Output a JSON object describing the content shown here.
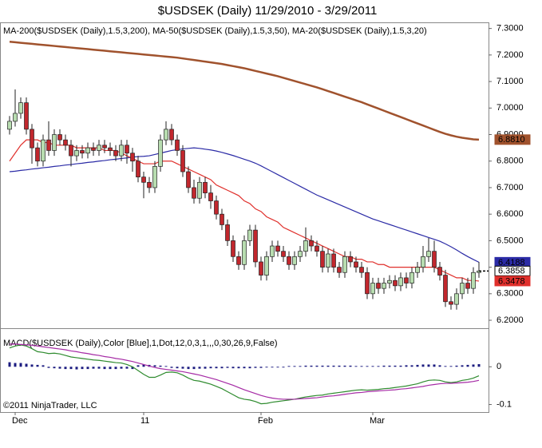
{
  "chart_data": [
    {
      "type": "candlestick",
      "title": "$USDSEK (Daily)  11/29/2010 - 3/29/2011",
      "legend": "MA-200($USDSEK (Daily),1.5,3,200), MA-50($USDSEK (Daily),1.5,3,50), MA-20($USDSEK (Daily),1.5,3,20)",
      "categories": [
        null,
        "Dec",
        null,
        null,
        null,
        null,
        null,
        null,
        null,
        null,
        null,
        null,
        null,
        null,
        null,
        null,
        null,
        null,
        null,
        null,
        null,
        null,
        null,
        null,
        "11",
        null,
        null,
        null,
        null,
        null,
        null,
        null,
        null,
        null,
        null,
        null,
        null,
        null,
        null,
        null,
        null,
        null,
        null,
        null,
        null,
        "Feb",
        null,
        null,
        null,
        null,
        null,
        null,
        null,
        null,
        null,
        null,
        null,
        null,
        null,
        null,
        null,
        null,
        null,
        null,
        null,
        "Mar",
        null,
        null,
        null,
        null,
        null,
        null,
        null,
        null,
        null,
        null,
        null,
        null,
        null,
        null,
        null,
        null,
        null,
        null,
        null
      ],
      "open": [
        6.92,
        6.95,
        6.98,
        7.02,
        6.92,
        6.85,
        6.8,
        6.88,
        6.84,
        6.9,
        6.88,
        6.86,
        6.82,
        6.84,
        6.83,
        6.85,
        6.84,
        6.86,
        6.85,
        6.84,
        6.82,
        6.86,
        6.83,
        6.8,
        6.74,
        6.72,
        6.7,
        6.78,
        6.88,
        6.92,
        6.88,
        6.84,
        6.76,
        6.7,
        6.66,
        6.72,
        6.68,
        6.65,
        6.6,
        6.56,
        6.5,
        6.44,
        6.41,
        6.5,
        6.54,
        6.42,
        6.37,
        6.44,
        6.48,
        6.46,
        6.44,
        6.41,
        6.44,
        6.46,
        6.5,
        6.48,
        6.46,
        6.4,
        6.45,
        6.4,
        6.38,
        6.44,
        6.42,
        6.4,
        6.38,
        6.3,
        6.34,
        6.32,
        6.34,
        6.35,
        6.33,
        6.36,
        6.34,
        6.38,
        6.4,
        6.44,
        6.46,
        6.4,
        6.37,
        6.27,
        6.26,
        6.3,
        6.34,
        6.32,
        6.38
      ],
      "high": [
        6.97,
        7.07,
        7.04,
        7.04,
        6.94,
        6.87,
        6.9,
        6.95,
        6.92,
        6.92,
        6.9,
        6.88,
        6.86,
        6.86,
        6.87,
        6.87,
        6.88,
        6.88,
        6.87,
        6.86,
        6.88,
        6.88,
        6.85,
        6.82,
        6.76,
        6.74,
        6.8,
        6.9,
        6.95,
        6.94,
        6.9,
        6.86,
        6.78,
        6.73,
        6.74,
        6.74,
        6.71,
        6.67,
        6.62,
        6.58,
        6.52,
        6.46,
        6.52,
        6.56,
        6.56,
        6.44,
        6.46,
        6.5,
        6.5,
        6.48,
        6.46,
        6.46,
        6.48,
        6.55,
        6.52,
        6.5,
        6.48,
        6.47,
        6.47,
        6.42,
        6.46,
        6.46,
        6.44,
        6.42,
        6.4,
        6.36,
        6.36,
        6.36,
        6.37,
        6.37,
        6.38,
        6.38,
        6.4,
        6.42,
        6.48,
        6.51,
        6.5,
        6.42,
        6.39,
        6.29,
        6.32,
        6.36,
        6.36,
        6.4,
        6.42
      ],
      "low": [
        6.9,
        6.93,
        6.96,
        6.9,
        6.79,
        6.78,
        6.78,
        6.82,
        6.82,
        6.86,
        6.84,
        6.78,
        6.8,
        6.81,
        6.81,
        6.82,
        6.82,
        6.83,
        6.82,
        6.8,
        6.8,
        6.79,
        6.76,
        6.72,
        6.66,
        6.68,
        6.68,
        6.76,
        6.86,
        6.86,
        6.82,
        6.74,
        6.68,
        6.64,
        6.64,
        6.66,
        6.62,
        6.58,
        6.54,
        6.48,
        6.42,
        6.39,
        6.39,
        6.48,
        6.4,
        6.35,
        6.35,
        6.42,
        6.44,
        6.42,
        6.39,
        6.39,
        6.42,
        6.44,
        6.46,
        6.44,
        6.38,
        6.38,
        6.38,
        6.36,
        6.36,
        6.4,
        6.38,
        6.36,
        6.28,
        6.28,
        6.3,
        6.3,
        6.32,
        6.31,
        6.31,
        6.32,
        6.32,
        6.36,
        6.38,
        6.42,
        6.38,
        6.35,
        6.25,
        6.24,
        6.24,
        6.28,
        6.3,
        6.3,
        6.36
      ],
      "close": [
        6.95,
        6.98,
        7.02,
        6.92,
        6.85,
        6.8,
        6.88,
        6.84,
        6.9,
        6.88,
        6.86,
        6.82,
        6.84,
        6.83,
        6.85,
        6.84,
        6.86,
        6.85,
        6.84,
        6.82,
        6.86,
        6.83,
        6.8,
        6.74,
        6.72,
        6.7,
        6.78,
        6.88,
        6.92,
        6.88,
        6.84,
        6.76,
        6.7,
        6.66,
        6.72,
        6.68,
        6.65,
        6.6,
        6.56,
        6.5,
        6.44,
        6.41,
        6.5,
        6.54,
        6.42,
        6.37,
        6.44,
        6.48,
        6.46,
        6.44,
        6.41,
        6.44,
        6.46,
        6.5,
        6.48,
        6.46,
        6.4,
        6.45,
        6.4,
        6.38,
        6.44,
        6.42,
        6.4,
        6.38,
        6.3,
        6.34,
        6.32,
        6.34,
        6.35,
        6.33,
        6.36,
        6.34,
        6.38,
        6.4,
        6.44,
        6.46,
        6.4,
        6.37,
        6.27,
        6.26,
        6.3,
        6.34,
        6.32,
        6.38,
        6.3858
      ],
      "up_color": "#b8ddb0",
      "down_color": "#c1272d",
      "series": [
        {
          "color": "#a0522d",
          "last_label": "6.8810",
          "values": [
            7.25,
            7.248,
            7.246,
            7.244,
            7.242,
            7.24,
            7.238,
            7.236,
            7.234,
            7.232,
            7.23,
            7.228,
            7.226,
            7.224,
            7.222,
            7.22,
            7.218,
            7.216,
            7.214,
            7.212,
            7.21,
            7.208,
            7.206,
            7.204,
            7.202,
            7.2,
            7.198,
            7.196,
            7.194,
            7.192,
            7.19,
            7.187,
            7.184,
            7.181,
            7.178,
            7.175,
            7.172,
            7.169,
            7.166,
            7.162,
            7.158,
            7.154,
            7.15,
            7.145,
            7.14,
            7.135,
            7.13,
            7.125,
            7.12,
            7.114,
            7.108,
            7.102,
            7.096,
            7.09,
            7.084,
            7.078,
            7.071,
            7.064,
            7.057,
            7.05,
            7.043,
            7.036,
            7.029,
            7.022,
            7.014,
            7.006,
            6.998,
            6.99,
            6.982,
            6.974,
            6.966,
            6.958,
            6.95,
            6.942,
            6.934,
            6.926,
            6.918,
            6.91,
            6.903,
            6.897,
            6.892,
            6.888,
            6.885,
            6.882,
            6.881
          ]
        },
        {
          "color": "#2b2ba6",
          "values": [
            6.76,
            6.762,
            6.765,
            6.767,
            6.77,
            6.772,
            6.775,
            6.777,
            6.78,
            6.782,
            6.785,
            6.787,
            6.79,
            6.792,
            6.795,
            6.797,
            6.8,
            6.802,
            6.805,
            6.807,
            6.81,
            6.812,
            6.815,
            6.817,
            6.818,
            6.82,
            6.825,
            6.83,
            6.835,
            6.84,
            6.843,
            6.846,
            6.848,
            6.85,
            6.848,
            6.845,
            6.842,
            6.838,
            6.833,
            6.827,
            6.821,
            6.814,
            6.807,
            6.8,
            6.792,
            6.782,
            6.771,
            6.76,
            6.749,
            6.738,
            6.727,
            6.716,
            6.705,
            6.694,
            6.683,
            6.672,
            6.663,
            6.654,
            6.645,
            6.636,
            6.627,
            6.618,
            6.609,
            6.6,
            6.591,
            6.582,
            6.575,
            6.568,
            6.561,
            6.554,
            6.547,
            6.54,
            6.533,
            6.526,
            6.519,
            6.512,
            6.505,
            6.498,
            6.488,
            6.477,
            6.465,
            6.452,
            6.44,
            6.429,
            6.4188
          ]
        },
        {
          "color": "#e0302c",
          "values": [
            6.8,
            6.83,
            6.86,
            6.88,
            6.88,
            6.88,
            6.87,
            6.87,
            6.86,
            6.86,
            6.86,
            6.86,
            6.85,
            6.85,
            6.85,
            6.85,
            6.85,
            6.84,
            6.84,
            6.84,
            6.83,
            6.82,
            6.81,
            6.8,
            6.79,
            6.79,
            6.79,
            6.8,
            6.8,
            6.8,
            6.79,
            6.78,
            6.77,
            6.76,
            6.75,
            6.74,
            6.73,
            6.71,
            6.7,
            6.69,
            6.68,
            6.67,
            6.65,
            6.64,
            6.62,
            6.61,
            6.59,
            6.58,
            6.57,
            6.55,
            6.54,
            6.53,
            6.52,
            6.51,
            6.5,
            6.49,
            6.48,
            6.47,
            6.46,
            6.45,
            6.44,
            6.44,
            6.43,
            6.43,
            6.42,
            6.42,
            6.41,
            6.41,
            6.4,
            6.4,
            6.4,
            6.4,
            6.4,
            6.4,
            6.4,
            6.4,
            6.4,
            6.39,
            6.38,
            6.37,
            6.36,
            6.36,
            6.35,
            6.35,
            6.3478
          ]
        }
      ],
      "ylim": [
        6.17,
        7.32
      ],
      "yticks": [
        {
          "value": 6.2,
          "label": "6.2000"
        },
        {
          "value": 6.3,
          "label": "6.3000"
        },
        {
          "value": 6.4,
          "label": "6.4000"
        },
        {
          "value": 6.5,
          "label": "6.5000"
        },
        {
          "value": 6.6,
          "label": "6.6000"
        },
        {
          "value": 6.7,
          "label": "6.7000"
        },
        {
          "value": 6.8,
          "label": "6.8000"
        },
        {
          "value": 6.9,
          "label": "6.9000"
        },
        {
          "value": 7.0,
          "label": "7.0000"
        },
        {
          "value": 7.1,
          "label": "7.1000"
        },
        {
          "value": 7.2,
          "label": "7.2000"
        },
        {
          "value": 7.3,
          "label": "7.3000"
        }
      ]
    },
    {
      "type": "macd",
      "title": "MACD($USDSEK (Daily),Color [Blue],1,Dot,12,0,3,1,,,0,30,26,9,False)",
      "copyright": "©2011 NinjaTrader, LLC",
      "series": [
        {
          "color": "#2e8b2e",
          "values": [
            0.05,
            0.055,
            0.058,
            0.055,
            0.048,
            0.04,
            0.038,
            0.035,
            0.036,
            0.034,
            0.03,
            0.026,
            0.024,
            0.022,
            0.02,
            0.018,
            0.017,
            0.015,
            0.013,
            0.011,
            0.01,
            0.006,
            0.0,
            -0.01,
            -0.02,
            -0.028,
            -0.028,
            -0.022,
            -0.015,
            -0.014,
            -0.016,
            -0.022,
            -0.03,
            -0.036,
            -0.038,
            -0.042,
            -0.046,
            -0.052,
            -0.058,
            -0.066,
            -0.074,
            -0.082,
            -0.086,
            -0.088,
            -0.092,
            -0.098,
            -0.097,
            -0.094,
            -0.092,
            -0.09,
            -0.088,
            -0.086,
            -0.083,
            -0.08,
            -0.078,
            -0.076,
            -0.075,
            -0.072,
            -0.07,
            -0.068,
            -0.066,
            -0.064,
            -0.062,
            -0.061,
            -0.062,
            -0.061,
            -0.06,
            -0.058,
            -0.057,
            -0.055,
            -0.053,
            -0.051,
            -0.048,
            -0.045,
            -0.04,
            -0.036,
            -0.035,
            -0.036,
            -0.04,
            -0.042,
            -0.04,
            -0.036,
            -0.034,
            -0.03,
            -0.024
          ]
        },
        {
          "color": "#a52aa5",
          "values": [
            0.06,
            0.06,
            0.059,
            0.058,
            0.057,
            0.055,
            0.053,
            0.051,
            0.049,
            0.047,
            0.045,
            0.042,
            0.04,
            0.037,
            0.035,
            0.032,
            0.03,
            0.027,
            0.025,
            0.022,
            0.02,
            0.017,
            0.014,
            0.01,
            0.006,
            0.002,
            -0.002,
            -0.005,
            -0.007,
            -0.009,
            -0.011,
            -0.013,
            -0.016,
            -0.019,
            -0.022,
            -0.026,
            -0.03,
            -0.034,
            -0.039,
            -0.044,
            -0.049,
            -0.055,
            -0.061,
            -0.066,
            -0.071,
            -0.076,
            -0.08,
            -0.083,
            -0.085,
            -0.086,
            -0.086,
            -0.086,
            -0.085,
            -0.084,
            -0.083,
            -0.082,
            -0.08,
            -0.078,
            -0.077,
            -0.075,
            -0.073,
            -0.071,
            -0.069,
            -0.068,
            -0.066,
            -0.065,
            -0.064,
            -0.063,
            -0.062,
            -0.061,
            -0.059,
            -0.058,
            -0.056,
            -0.054,
            -0.052,
            -0.049,
            -0.047,
            -0.045,
            -0.044,
            -0.044,
            -0.043,
            -0.042,
            -0.041,
            -0.039,
            -0.036
          ]
        }
      ],
      "histogram": {
        "color": "#1c1c80",
        "values": [
          0.012,
          0.01,
          0.01,
          0.008,
          0.006,
          0.005,
          0.004,
          -0.003,
          -0.004,
          -0.005,
          -0.006,
          -0.006,
          -0.007,
          -0.006,
          -0.006,
          -0.005,
          -0.005,
          -0.006,
          -0.006,
          -0.006,
          -0.005,
          -0.005,
          -0.006,
          0.004,
          0.006,
          0.005,
          0.004,
          0.003,
          0.002,
          -0.003,
          -0.004,
          -0.005,
          -0.006,
          -0.006,
          -0.005,
          -0.005,
          -0.004,
          -0.004,
          -0.004,
          -0.003,
          -0.004,
          -0.004,
          -0.004,
          -0.004,
          -0.003,
          -0.003,
          -0.002,
          -0.002,
          -0.002,
          -0.002,
          0.002,
          0.002,
          0.002,
          0.003,
          0.003,
          0.003,
          0.003,
          0.003,
          0.003,
          0.003,
          0.003,
          0.003,
          0.002,
          0.002,
          0.002,
          0.002,
          0.002,
          0.003,
          0.003,
          0.003,
          0.003,
          0.004,
          0.004,
          0.005,
          0.006,
          0.006,
          0.006,
          0.004,
          0.002,
          0.002,
          0.003,
          0.004,
          0.005,
          0.006,
          0.007
        ]
      },
      "ylim": [
        -0.12,
        0.1
      ],
      "yticks": [
        -0.1,
        0
      ]
    }
  ]
}
